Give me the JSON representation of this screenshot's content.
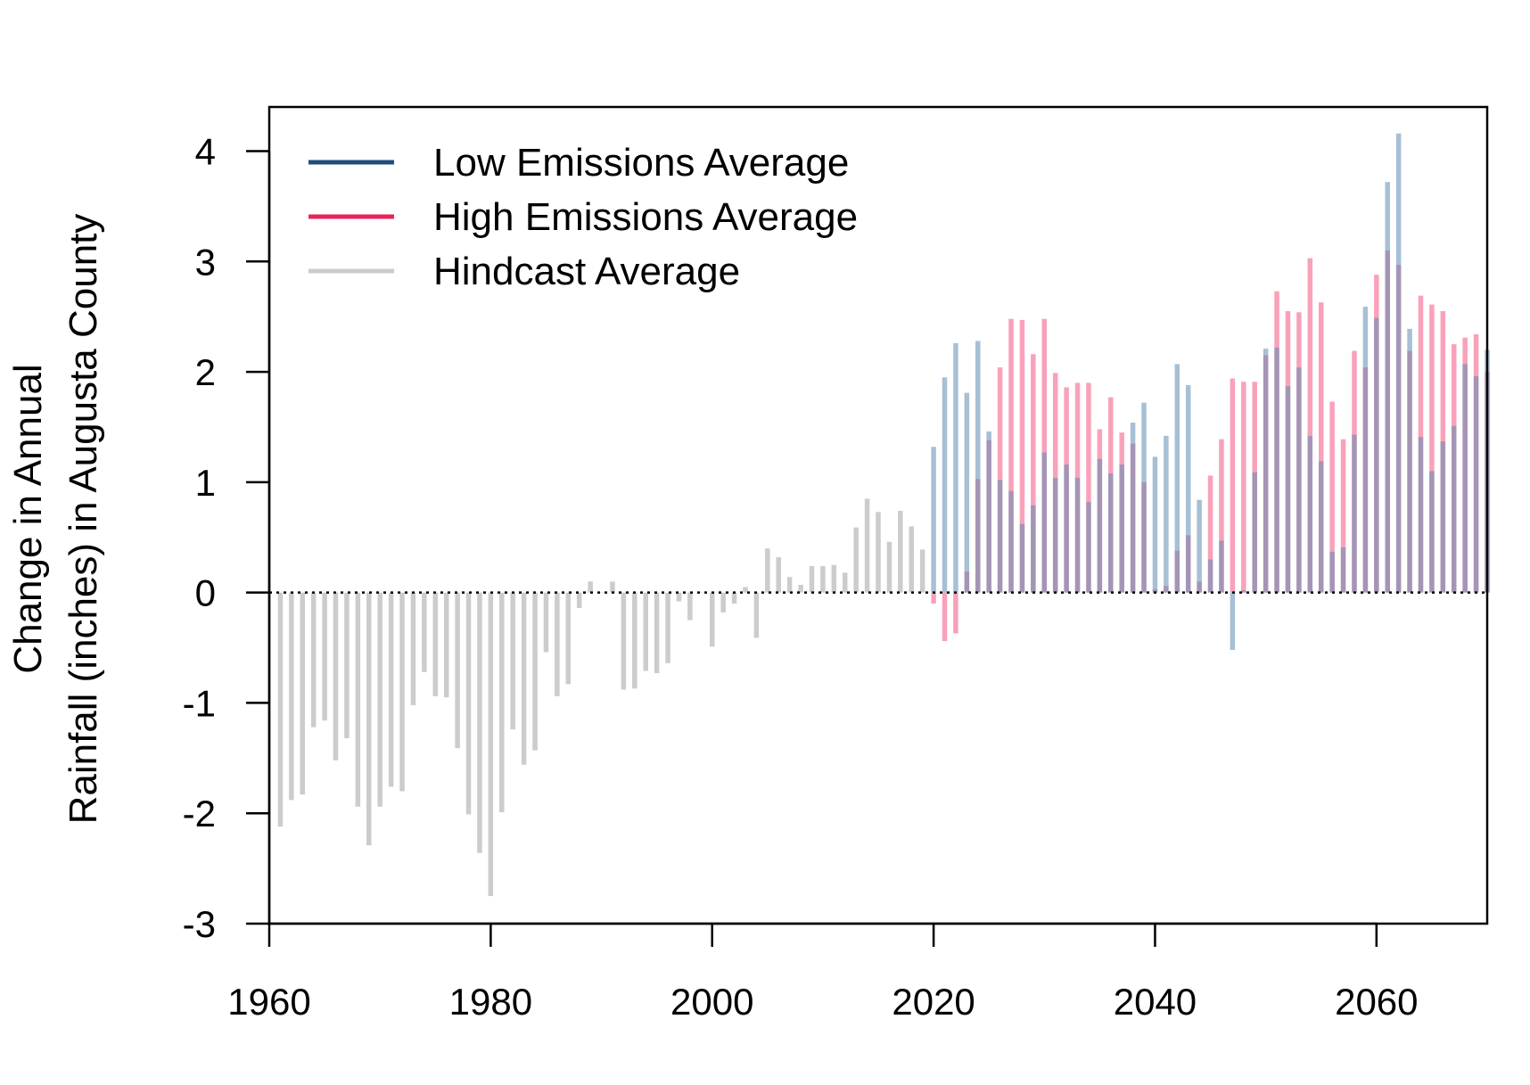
{
  "chart_data": {
    "type": "bar",
    "title": "",
    "xlabel": "",
    "ylabel_lines": [
      "Change in Annual",
      "Rainfall (inches) in Augusta County"
    ],
    "xlim": [
      1960,
      2070
    ],
    "ylim": [
      -3,
      4.4
    ],
    "x_ticks": [
      1960,
      1980,
      2000,
      2020,
      2040,
      2060
    ],
    "y_ticks": [
      -3,
      -2,
      -1,
      0,
      1,
      2,
      3,
      4
    ],
    "grid": false,
    "zero_line": "dotted",
    "legend": {
      "placement": "top-left",
      "entries": [
        {
          "label": "Low Emissions Average",
          "color": "#1f4e79"
        },
        {
          "label": "High Emissions Average",
          "color": "#e8245a"
        },
        {
          "label": "Hindcast Average",
          "color": "#cccccc"
        }
      ]
    },
    "series": [
      {
        "key": "hindcast",
        "color": "#cccccc",
        "x": [
          1961,
          1962,
          1963,
          1964,
          1965,
          1966,
          1967,
          1968,
          1969,
          1970,
          1971,
          1972,
          1973,
          1974,
          1975,
          1976,
          1977,
          1978,
          1979,
          1980,
          1981,
          1982,
          1983,
          1984,
          1985,
          1986,
          1987,
          1988,
          1989,
          1990,
          1991,
          1992,
          1993,
          1994,
          1995,
          1996,
          1997,
          1998,
          1999,
          2000,
          2001,
          2002,
          2003,
          2004,
          2005,
          2006,
          2007,
          2008,
          2009,
          2010,
          2011,
          2012,
          2013,
          2014,
          2015,
          2016,
          2017,
          2018,
          2019
        ],
        "values": [
          -2.12,
          -1.88,
          -1.83,
          -1.22,
          -1.16,
          -1.52,
          -1.32,
          -1.94,
          -2.29,
          -1.94,
          -1.76,
          -1.8,
          -1.02,
          -0.72,
          -0.94,
          -0.95,
          -1.41,
          -2.01,
          -2.36,
          -2.75,
          -1.99,
          -1.24,
          -1.56,
          -1.43,
          -0.54,
          -0.94,
          -0.83,
          -0.14,
          0.1,
          0,
          0.1,
          -0.88,
          -0.87,
          -0.71,
          -0.73,
          -0.64,
          -0.08,
          -0.25,
          0,
          -0.49,
          -0.18,
          -0.1,
          0.05,
          -0.41,
          0.4,
          0.32,
          0.14,
          0.07,
          0.24,
          0.24,
          0.25,
          0.18,
          0.59,
          0.85,
          0.73,
          0.46,
          0.74,
          0.6,
          0.39
        ]
      },
      {
        "key": "low",
        "color": "#1f4e79",
        "x": [
          2020,
          2021,
          2022,
          2023,
          2024,
          2025,
          2026,
          2027,
          2028,
          2029,
          2030,
          2031,
          2032,
          2033,
          2034,
          2035,
          2036,
          2037,
          2038,
          2039,
          2040,
          2041,
          2042,
          2043,
          2044,
          2045,
          2046,
          2047,
          2048,
          2049,
          2050,
          2051,
          2052,
          2053,
          2054,
          2055,
          2056,
          2057,
          2058,
          2059,
          2060,
          2061,
          2062,
          2063,
          2064,
          2065,
          2066,
          2067,
          2068,
          2069,
          2070
        ],
        "values": [
          1.32,
          1.95,
          2.26,
          1.81,
          2.28,
          1.46,
          1.02,
          0.92,
          0.62,
          0.79,
          1.27,
          1.04,
          1.16,
          1.04,
          0.82,
          1.21,
          1.08,
          1.16,
          1.54,
          1.72,
          1.23,
          1.42,
          2.07,
          1.88,
          0.84,
          0.3,
          0.47,
          -0.52,
          0.02,
          1.09,
          2.21,
          2.22,
          1.87,
          2.04,
          1.42,
          1.19,
          0.37,
          0.41,
          1.43,
          2.59,
          2.49,
          3.72,
          4.16,
          2.39,
          1.41,
          1.1,
          1.37,
          1.51,
          2.07,
          1.96,
          2.2
        ]
      },
      {
        "key": "high",
        "color": "#e8245a",
        "x": [
          2020,
          2021,
          2022,
          2023,
          2024,
          2025,
          2026,
          2027,
          2028,
          2029,
          2030,
          2031,
          2032,
          2033,
          2034,
          2035,
          2036,
          2037,
          2038,
          2039,
          2040,
          2041,
          2042,
          2043,
          2044,
          2045,
          2046,
          2047,
          2048,
          2049,
          2050,
          2051,
          2052,
          2053,
          2054,
          2055,
          2056,
          2057,
          2058,
          2059,
          2060,
          2061,
          2062,
          2063,
          2064,
          2065,
          2066,
          2067,
          2068,
          2069,
          2070
        ],
        "values": [
          -0.1,
          -0.44,
          -0.37,
          0.19,
          1.03,
          1.38,
          2.04,
          2.48,
          2.47,
          2.16,
          2.48,
          1.99,
          1.86,
          1.9,
          1.9,
          1.48,
          1.77,
          1.45,
          1.35,
          1.0,
          0.03,
          0.06,
          0.38,
          0.52,
          0.1,
          1.06,
          1.39,
          1.94,
          1.91,
          1.91,
          2.15,
          2.73,
          2.55,
          2.54,
          3.03,
          2.63,
          1.73,
          1.39,
          2.19,
          2.04,
          2.88,
          3.1,
          2.97,
          2.19,
          2.69,
          2.61,
          2.55,
          2.25,
          2.31,
          2.34,
          2.0
        ]
      }
    ]
  }
}
